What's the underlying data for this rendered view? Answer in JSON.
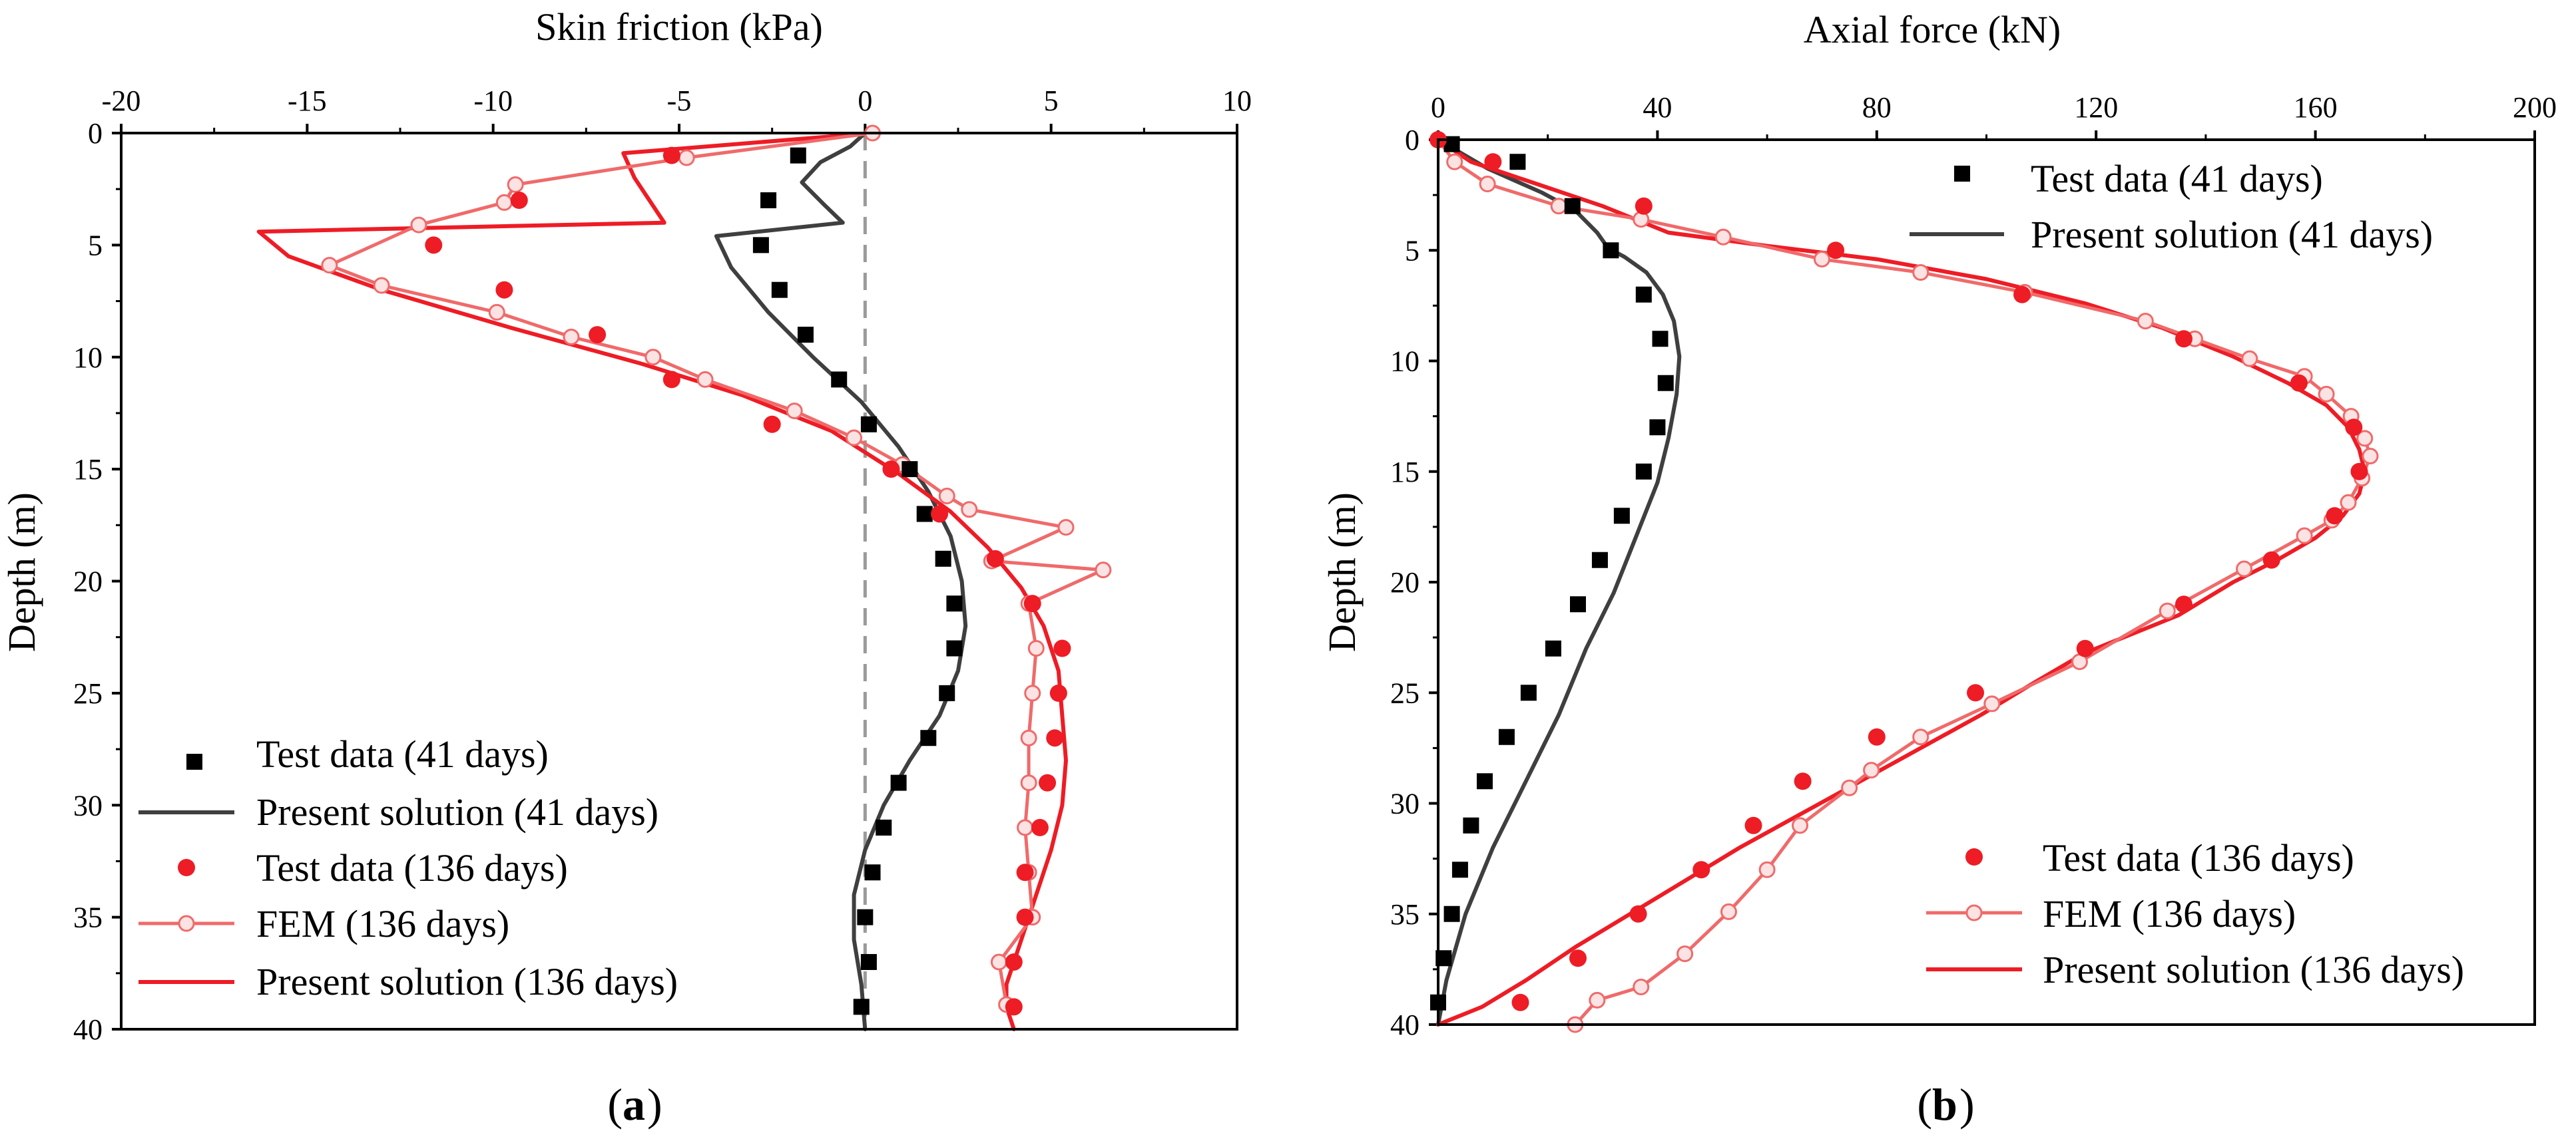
{
  "chart_data": [
    {
      "type": "line",
      "panel_label_prefix": "(",
      "panel_label_letter": "a",
      "panel_label_suffix": ")",
      "xlabel": "Skin friction (kPa)",
      "ylabel": "Depth (m)",
      "xlim": [
        -20,
        10
      ],
      "ylim": [
        0,
        40
      ],
      "y_inverted": true,
      "x_axis_position": "top",
      "x_ticks": [
        -20,
        -15,
        -10,
        -5,
        0,
        5,
        10
      ],
      "y_ticks": [
        0,
        5,
        10,
        15,
        20,
        25,
        30,
        35,
        40
      ],
      "reference_line": {
        "x": 0,
        "style": "dashed",
        "color": "#999999"
      },
      "legend_position": "bottom-left",
      "series": [
        {
          "name": "Test data (41 days)",
          "kind": "square-markers",
          "color": "#000000",
          "points": [
            [
              -1.8,
              1
            ],
            [
              -2.6,
              3
            ],
            [
              -2.8,
              5
            ],
            [
              -2.3,
              7
            ],
            [
              -1.6,
              9
            ],
            [
              -0.7,
              11
            ],
            [
              0.1,
              13
            ],
            [
              1.2,
              15
            ],
            [
              1.6,
              17
            ],
            [
              2.1,
              19
            ],
            [
              2.4,
              21
            ],
            [
              2.4,
              23
            ],
            [
              2.2,
              25
            ],
            [
              1.7,
              27
            ],
            [
              0.9,
              29
            ],
            [
              0.5,
              31
            ],
            [
              0.2,
              33
            ],
            [
              0.0,
              35
            ],
            [
              0.1,
              37
            ],
            [
              -0.1,
              39
            ]
          ]
        },
        {
          "name": "Present solution (41 days)",
          "kind": "line",
          "color": "#3f3f3f",
          "points": [
            [
              0,
              0
            ],
            [
              -0.4,
              0.6
            ],
            [
              -1.2,
              1.3
            ],
            [
              -1.7,
              2.2
            ],
            [
              -1.1,
              3.2
            ],
            [
              -0.6,
              4.0
            ],
            [
              -4.0,
              4.6
            ],
            [
              -3.6,
              6.0
            ],
            [
              -2.6,
              8.0
            ],
            [
              -1.4,
              10.0
            ],
            [
              -0.1,
              12.0
            ],
            [
              0.9,
              14.0
            ],
            [
              1.7,
              16.0
            ],
            [
              2.3,
              18.0
            ],
            [
              2.6,
              20.0
            ],
            [
              2.7,
              22.0
            ],
            [
              2.5,
              24.0
            ],
            [
              2.0,
              26.0
            ],
            [
              1.2,
              28.0
            ],
            [
              0.5,
              30.0
            ],
            [
              0.0,
              32.0
            ],
            [
              -0.3,
              34.0
            ],
            [
              -0.3,
              36.0
            ],
            [
              -0.1,
              38.0
            ],
            [
              0.0,
              40.0
            ]
          ]
        },
        {
          "name": "Test data (136 days)",
          "kind": "circle-markers",
          "color": "#ee1c25",
          "points": [
            [
              -5.2,
              1
            ],
            [
              -9.3,
              3
            ],
            [
              -11.6,
              5
            ],
            [
              -9.7,
              7
            ],
            [
              -7.2,
              9
            ],
            [
              -5.2,
              11
            ],
            [
              -2.5,
              13
            ],
            [
              0.7,
              15
            ],
            [
              2.0,
              17
            ],
            [
              3.5,
              19
            ],
            [
              4.5,
              21
            ],
            [
              5.3,
              23
            ],
            [
              5.2,
              25
            ],
            [
              5.1,
              27
            ],
            [
              4.9,
              29
            ],
            [
              4.7,
              31
            ],
            [
              4.3,
              33
            ],
            [
              4.3,
              35
            ],
            [
              4.0,
              37
            ],
            [
              4.0,
              39
            ]
          ]
        },
        {
          "name": "FEM (136 days)",
          "kind": "line-open-circles",
          "color": "#f06a6a",
          "points": [
            [
              0.2,
              0
            ],
            [
              -4.8,
              1.1
            ],
            [
              -9.4,
              2.3
            ],
            [
              -9.7,
              3.1
            ],
            [
              -12.0,
              4.1
            ],
            [
              -14.4,
              5.9
            ],
            [
              -13.0,
              6.8
            ],
            [
              -9.9,
              8.0
            ],
            [
              -7.9,
              9.1
            ],
            [
              -5.7,
              10.0
            ],
            [
              -4.3,
              11.0
            ],
            [
              -1.9,
              12.4
            ],
            [
              -0.3,
              13.6
            ],
            [
              1.0,
              14.8
            ],
            [
              2.2,
              16.2
            ],
            [
              2.8,
              16.8
            ],
            [
              5.4,
              17.6
            ],
            [
              3.4,
              19.1
            ],
            [
              6.4,
              19.5
            ],
            [
              4.4,
              21.0
            ],
            [
              4.6,
              23.0
            ],
            [
              4.5,
              25.0
            ],
            [
              4.4,
              27.0
            ],
            [
              4.4,
              29.0
            ],
            [
              4.3,
              31.0
            ],
            [
              4.4,
              33.0
            ],
            [
              4.5,
              35.0
            ],
            [
              3.6,
              37.0
            ],
            [
              3.8,
              38.9
            ]
          ]
        },
        {
          "name": "Present solution (136 days)",
          "kind": "line",
          "color": "#ee1c25",
          "points": [
            [
              0.2,
              0
            ],
            [
              -6.5,
              0.9
            ],
            [
              -6.2,
              2.0
            ],
            [
              -5.4,
              4.0
            ],
            [
              -16.3,
              4.4
            ],
            [
              -15.5,
              5.5
            ],
            [
              -13.0,
              7.0
            ],
            [
              -9.5,
              8.7
            ],
            [
              -6.0,
              10.3
            ],
            [
              -3.3,
              11.7
            ],
            [
              -0.9,
              13.3
            ],
            [
              0.9,
              15.2
            ],
            [
              2.3,
              16.9
            ],
            [
              3.3,
              18.5
            ],
            [
              4.2,
              20.3
            ],
            [
              4.8,
              22.0
            ],
            [
              5.2,
              24.0
            ],
            [
              5.3,
              26.0
            ],
            [
              5.4,
              28.0
            ],
            [
              5.3,
              30.0
            ],
            [
              5.0,
              32.0
            ],
            [
              4.6,
              34.0
            ],
            [
              4.2,
              36.0
            ],
            [
              3.8,
              38.0
            ],
            [
              3.8,
              39.0
            ],
            [
              4.0,
              40.0
            ]
          ]
        }
      ]
    },
    {
      "type": "line",
      "panel_label_prefix": "(",
      "panel_label_letter": "b",
      "panel_label_suffix": ")",
      "xlabel": "Axial force (kN)",
      "ylabel": "Depth (m)",
      "xlim": [
        0,
        200
      ],
      "ylim": [
        0,
        40
      ],
      "y_inverted": true,
      "x_axis_position": "top",
      "x_ticks": [
        0,
        40,
        80,
        120,
        160,
        200
      ],
      "y_ticks": [
        0,
        5,
        10,
        15,
        20,
        25,
        30,
        35,
        40
      ],
      "legend_position": "top-right and bottom-right",
      "series": [
        {
          "name": "Test data (41 days)",
          "kind": "square-markers",
          "color": "#000000",
          "points": [
            [
              2.5,
              0.2
            ],
            [
              14.5,
              1
            ],
            [
              24.5,
              3
            ],
            [
              31.5,
              5
            ],
            [
              37.5,
              7
            ],
            [
              40.5,
              9
            ],
            [
              41.5,
              11
            ],
            [
              40,
              13
            ],
            [
              37.5,
              15
            ],
            [
              33.5,
              17
            ],
            [
              29.5,
              19
            ],
            [
              25.5,
              21
            ],
            [
              21,
              23
            ],
            [
              16.5,
              25
            ],
            [
              12.5,
              27
            ],
            [
              8.5,
              29
            ],
            [
              6,
              31
            ],
            [
              4,
              33
            ],
            [
              2.5,
              35
            ],
            [
              1,
              37
            ],
            [
              0,
              39
            ]
          ]
        },
        {
          "name": "Present solution (41 days)",
          "kind": "line",
          "color": "#3f3f3f",
          "points": [
            [
              0,
              0
            ],
            [
              9,
              1.3
            ],
            [
              19,
              2.4
            ],
            [
              25,
              3.2
            ],
            [
              29,
              4.2
            ],
            [
              31,
              4.9
            ],
            [
              34,
              5.3
            ],
            [
              38,
              6.0
            ],
            [
              41,
              7.0
            ],
            [
              43,
              8.2
            ],
            [
              44,
              9.8
            ],
            [
              43.5,
              11.5
            ],
            [
              42,
              13.5
            ],
            [
              40,
              15.5
            ],
            [
              36,
              18.0
            ],
            [
              32,
              20.5
            ],
            [
              27,
              23.0
            ],
            [
              22,
              26.0
            ],
            [
              16,
              29.0
            ],
            [
              10,
              32.0
            ],
            [
              5,
              35.0
            ],
            [
              1.5,
              38.0
            ],
            [
              0,
              40.0
            ]
          ]
        },
        {
          "name": "Test data (136 days)",
          "kind": "circle-markers",
          "color": "#ee1c25",
          "points": [
            [
              0,
              0
            ],
            [
              10,
              1
            ],
            [
              37.5,
              3
            ],
            [
              72.5,
              5
            ],
            [
              106.5,
              7
            ],
            [
              136,
              9
            ],
            [
              157,
              11
            ],
            [
              167,
              13
            ],
            [
              168,
              15
            ],
            [
              163.5,
              17
            ],
            [
              152,
              19
            ],
            [
              136,
              21
            ],
            [
              118,
              23
            ],
            [
              98,
              25
            ],
            [
              80,
              27
            ],
            [
              66.5,
              29
            ],
            [
              57.5,
              31
            ],
            [
              48,
              33
            ],
            [
              36.5,
              35
            ],
            [
              25.5,
              37
            ],
            [
              15,
              39
            ]
          ]
        },
        {
          "name": "FEM (136 days)",
          "kind": "line-open-circles",
          "color": "#f06a6a",
          "points": [
            [
              0,
              0
            ],
            [
              3,
              1.0
            ],
            [
              9,
              2.0
            ],
            [
              22,
              3.0
            ],
            [
              37,
              3.6
            ],
            [
              52,
              4.4
            ],
            [
              70,
              5.4
            ],
            [
              88,
              6.0
            ],
            [
              107,
              6.9
            ],
            [
              129,
              8.2
            ],
            [
              138,
              9.0
            ],
            [
              148,
              9.9
            ],
            [
              158,
              10.7
            ],
            [
              162,
              11.5
            ],
            [
              166.5,
              12.5
            ],
            [
              169,
              13.5
            ],
            [
              170,
              14.3
            ],
            [
              168.5,
              15.3
            ],
            [
              166,
              16.4
            ],
            [
              163,
              17.2
            ],
            [
              158,
              17.9
            ],
            [
              147,
              19.4
            ],
            [
              133,
              21.3
            ],
            [
              117,
              23.6
            ],
            [
              101,
              25.5
            ],
            [
              88,
              27.0
            ],
            [
              79,
              28.5
            ],
            [
              75,
              29.3
            ],
            [
              66,
              31.0
            ],
            [
              60,
              33.0
            ],
            [
              53,
              34.9
            ],
            [
              45,
              36.8
            ],
            [
              37,
              38.3
            ],
            [
              29,
              38.9
            ],
            [
              25,
              40.0
            ]
          ]
        },
        {
          "name": "Present solution (136 days)",
          "kind": "line",
          "color": "#ee1c25",
          "points": [
            [
              0,
              0
            ],
            [
              6,
              1.0
            ],
            [
              18,
              2.0
            ],
            [
              30,
              3.0
            ],
            [
              42,
              4.2
            ],
            [
              60,
              4.8
            ],
            [
              80,
              5.4
            ],
            [
              100,
              6.3
            ],
            [
              118,
              7.4
            ],
            [
              132,
              8.5
            ],
            [
              145,
              9.8
            ],
            [
              155,
              11.0
            ],
            [
              162,
              12.0
            ],
            [
              166,
              13.0
            ],
            [
              168,
              14.0
            ],
            [
              169,
              15.0
            ],
            [
              168,
              16.0
            ],
            [
              165,
              17.0
            ],
            [
              160,
              18.0
            ],
            [
              153,
              19.0
            ],
            [
              145,
              20.0
            ],
            [
              135,
              21.5
            ],
            [
              125,
              22.5
            ],
            [
              118,
              23.2
            ],
            [
              109,
              24.5
            ],
            [
              99,
              26.0
            ],
            [
              88,
              27.5
            ],
            [
              77,
              29.0
            ],
            [
              66,
              30.5
            ],
            [
              55,
              32.0
            ],
            [
              45,
              33.5
            ],
            [
              35,
              35.0
            ],
            [
              25,
              36.5
            ],
            [
              16,
              38.0
            ],
            [
              8,
              39.2
            ],
            [
              0,
              40.0
            ]
          ]
        }
      ]
    }
  ]
}
